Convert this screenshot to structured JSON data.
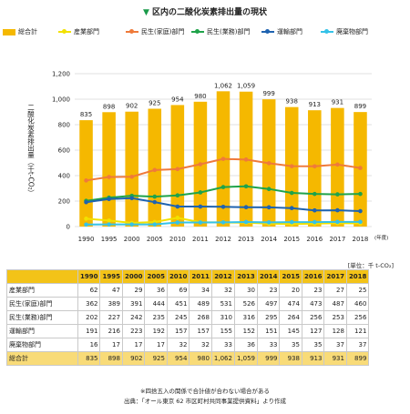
{
  "title": "区内の二酸化炭素排出量の現状",
  "unit_label": "[単位：千 t-CO₂]",
  "notes": [
    "※四捨五入の関係で合計値が合わない場合がある",
    "出典：「オール東京 62 市区町村共同事業提供資料」より作成"
  ],
  "chart_data": {
    "type": "bar",
    "title": "区内の二酸化炭素排出量の現状",
    "ylabel": "二酸化炭素排出量（千t-CO₂）",
    "xlabel": "(年度)",
    "ylim": [
      0,
      1200
    ],
    "yticks": [
      "0",
      "200",
      "400",
      "600",
      "800",
      "1,000",
      "1,200"
    ],
    "grid": true,
    "legend_position": "top",
    "categories": [
      "1990",
      "1995",
      "2000",
      "2005",
      "2010",
      "2011",
      "2012",
      "2013",
      "2014",
      "2015",
      "2016",
      "2017",
      "2018"
    ],
    "bar_labels": [
      "835",
      "898",
      "902",
      "925",
      "954",
      "980",
      "1,062",
      "1,059",
      "999",
      "938",
      "913",
      "931",
      "899"
    ],
    "series": [
      {
        "name": "総合計",
        "kind": "bar",
        "color": "#f5b800",
        "values": [
          835,
          898,
          902,
          925,
          954,
          980,
          1062,
          1059,
          999,
          938,
          913,
          931,
          899
        ]
      },
      {
        "name": "産業部門",
        "kind": "line",
        "color": "#f2e100",
        "values": [
          62,
          47,
          29,
          36,
          69,
          34,
          32,
          30,
          23,
          20,
          23,
          27,
          25
        ]
      },
      {
        "name": "民生(家庭)部門",
        "kind": "line",
        "color": "#ef7a3a",
        "values": [
          362,
          389,
          391,
          444,
          451,
          489,
          531,
          526,
          497,
          474,
          473,
          487,
          460
        ]
      },
      {
        "name": "民生(業務)部門",
        "kind": "line",
        "color": "#1fa34a",
        "values": [
          202,
          227,
          242,
          235,
          245,
          268,
          310,
          316,
          295,
          264,
          256,
          253,
          256
        ]
      },
      {
        "name": "運輸部門",
        "kind": "line",
        "color": "#1f63b0",
        "values": [
          191,
          216,
          223,
          192,
          157,
          157,
          155,
          152,
          151,
          145,
          127,
          128,
          121
        ]
      },
      {
        "name": "廃棄物部門",
        "kind": "line",
        "color": "#35c2e8",
        "values": [
          16,
          17,
          17,
          17,
          32,
          32,
          33,
          36,
          33,
          35,
          35,
          37,
          37
        ]
      }
    ]
  },
  "table": {
    "rows": [
      {
        "label": "産業部門",
        "values": [
          "62",
          "47",
          "29",
          "36",
          "69",
          "34",
          "32",
          "30",
          "23",
          "20",
          "23",
          "27",
          "25"
        ]
      },
      {
        "label": "民生(家庭)部門",
        "values": [
          "362",
          "389",
          "391",
          "444",
          "451",
          "489",
          "531",
          "526",
          "497",
          "474",
          "473",
          "487",
          "460"
        ]
      },
      {
        "label": "民生(業務)部門",
        "values": [
          "202",
          "227",
          "242",
          "235",
          "245",
          "268",
          "310",
          "316",
          "295",
          "264",
          "256",
          "253",
          "256"
        ]
      },
      {
        "label": "運輸部門",
        "values": [
          "191",
          "216",
          "223",
          "192",
          "157",
          "157",
          "155",
          "152",
          "151",
          "145",
          "127",
          "128",
          "121"
        ]
      },
      {
        "label": "廃棄物部門",
        "values": [
          "16",
          "17",
          "17",
          "17",
          "32",
          "32",
          "33",
          "36",
          "33",
          "35",
          "35",
          "37",
          "37"
        ]
      },
      {
        "label": "総合計",
        "values": [
          "835",
          "898",
          "902",
          "925",
          "954",
          "980",
          "1,062",
          "1,059",
          "999",
          "938",
          "913",
          "931",
          "899"
        ]
      }
    ]
  }
}
